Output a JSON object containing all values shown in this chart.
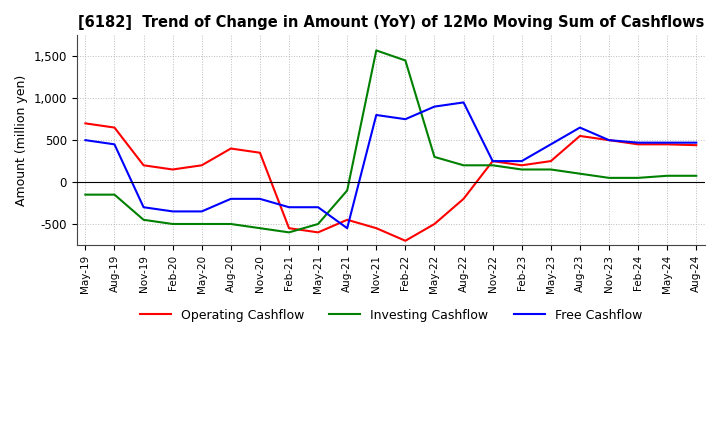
{
  "title": "[6182]  Trend of Change in Amount (YoY) of 12Mo Moving Sum of Cashflows",
  "ylabel": "Amount (million yen)",
  "x_labels": [
    "May-19",
    "Aug-19",
    "Nov-19",
    "Feb-20",
    "May-20",
    "Aug-20",
    "Nov-20",
    "Feb-21",
    "May-21",
    "Aug-21",
    "Nov-21",
    "Feb-22",
    "May-22",
    "Aug-22",
    "Nov-22",
    "Feb-23",
    "May-23",
    "Aug-23",
    "Nov-23",
    "Feb-24",
    "May-24",
    "Aug-24"
  ],
  "operating": [
    700,
    650,
    200,
    150,
    200,
    400,
    350,
    -550,
    -600,
    -450,
    -550,
    -700,
    -500,
    -200,
    250,
    200,
    250,
    550,
    500,
    450,
    450,
    440
  ],
  "investing": [
    -150,
    -150,
    -450,
    -500,
    -500,
    -500,
    -550,
    -600,
    -500,
    -100,
    1570,
    1450,
    300,
    200,
    200,
    150,
    150,
    100,
    50,
    50,
    75,
    75
  ],
  "free": [
    500,
    450,
    -300,
    -350,
    -350,
    -200,
    -200,
    -300,
    -300,
    -550,
    800,
    750,
    900,
    950,
    250,
    250,
    450,
    650,
    500,
    470,
    470,
    470
  ],
  "ylim": [
    -750,
    1750
  ],
  "yticks": [
    -500,
    0,
    500,
    1000,
    1500
  ],
  "colors": {
    "operating": "#ff0000",
    "investing": "#008000",
    "free": "#0000ff"
  },
  "legend": [
    "Operating Cashflow",
    "Investing Cashflow",
    "Free Cashflow"
  ],
  "grid_color": "#bbbbbb",
  "background": "#ffffff"
}
